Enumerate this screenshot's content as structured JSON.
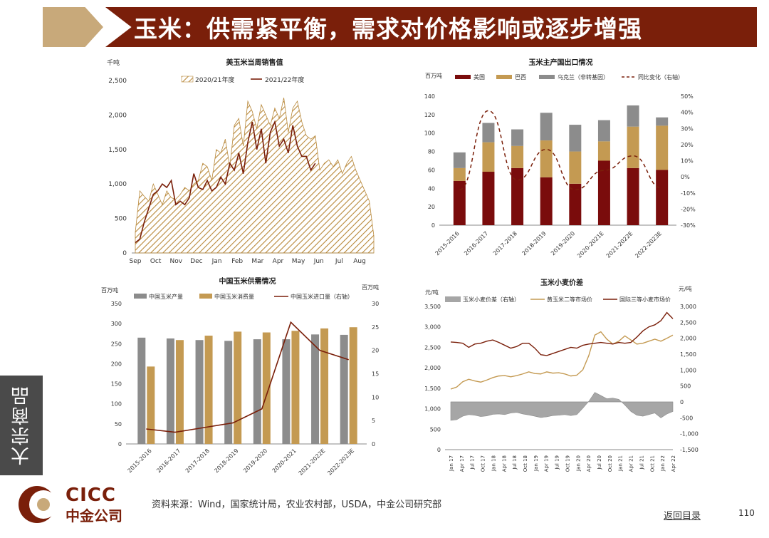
{
  "header": {
    "title": "玉米：供需紧平衡，需求对价格影响或逐步增强"
  },
  "side_tab": {
    "label": "大宗商品"
  },
  "footer": {
    "source": "资料来源：Wind，国家统计局，农业农村部，USDA，中金公司研究部",
    "back_link": "返回目录",
    "page_number": "110",
    "logo_en": "CICC",
    "logo_zh": "中金公司"
  },
  "colors": {
    "brand": "#7a1f0a",
    "tan": "#c8a97a",
    "gray": "#8c8c8c",
    "gold": "#c49a52"
  },
  "chart_data": [
    {
      "type": "area",
      "title": "美玉米当周销售值",
      "ylabel": "千吨",
      "ylim": [
        0,
        2500
      ],
      "yticks": [
        "0",
        "500",
        "1,000",
        "1,500",
        "2,000",
        "2,500"
      ],
      "months": [
        "Sep",
        "Oct",
        "Nov",
        "Dec",
        "Jan",
        "Feb",
        "Mar",
        "Apr",
        "May",
        "Jun",
        "Jul",
        "Aug"
      ],
      "legend_location": "top",
      "series": [
        {
          "name": "2020/21年度",
          "kind": "hatched-area",
          "values": [
            300,
            900,
            820,
            750,
            1000,
            850,
            700,
            900,
            800,
            780,
            850,
            950,
            900,
            1000,
            1050,
            1300,
            1250,
            1050,
            1500,
            1450,
            1650,
            1250,
            1850,
            1950,
            1550,
            2200,
            2050,
            1800,
            2150,
            2000,
            1850,
            2100,
            1950,
            2250,
            1750,
            2100,
            2200,
            1900,
            1700,
            1650,
            1700,
            1200,
            1300,
            1350,
            1250,
            1350,
            1150,
            1300,
            1400,
            1200,
            1050,
            900,
            750,
            250
          ]
        },
        {
          "name": "2021/22年度",
          "kind": "line",
          "values": [
            150,
            200,
            450,
            650,
            850,
            900,
            1000,
            950,
            1050,
            700,
            750,
            700,
            800,
            1150,
            950,
            920,
            1050,
            900,
            950,
            1100,
            1000,
            1300,
            1200,
            1450,
            1150,
            1600,
            1900,
            1500,
            1800,
            1300,
            1750,
            1900,
            1550,
            1650,
            1450,
            1850,
            1550,
            1400,
            1400,
            1200,
            1300
          ]
        }
      ]
    },
    {
      "type": "bar",
      "title": "玉米主产国出口情况",
      "ylabel": "百万吨",
      "ylim": [
        0,
        140
      ],
      "y2lim": [
        -30,
        50
      ],
      "y2ticks": [
        "50%",
        "40%",
        "30%",
        "20%",
        "10%",
        "0%",
        "-10%",
        "-20%",
        "-30%"
      ],
      "categories": [
        "2015-2016",
        "2016-2017",
        "2017-2018",
        "2018-2019",
        "2019-2020",
        "2020-2021E",
        "2021-2022E",
        "2022-2023E"
      ],
      "legend_location": "top",
      "series": [
        {
          "name": "美国",
          "values": [
            48,
            58,
            62,
            52,
            45,
            70,
            62,
            60
          ]
        },
        {
          "name": "巴西",
          "values": [
            14,
            32,
            24,
            40,
            35,
            21,
            45,
            48
          ]
        },
        {
          "name": "乌克兰（非转基因）",
          "values": [
            17,
            21,
            18,
            30,
            29,
            23,
            23,
            9
          ]
        },
        {
          "name": "同比变化（右轴）",
          "axis": "right",
          "kind": "dashed-line",
          "values": [
            -8,
            41,
            -2,
            17,
            -8,
            4,
            13,
            -7
          ]
        }
      ]
    },
    {
      "type": "bar",
      "title": "中国玉米供需情况",
      "ylabel": "百万吨",
      "y2label": "百万吨",
      "ylim": [
        0,
        350
      ],
      "y2lim": [
        0,
        30
      ],
      "categories": [
        "2015-2016",
        "2016-2017",
        "2017-2018",
        "2018-2019",
        "2019-2020",
        "2020-2021",
        "2021-2022E",
        "2022-2023E"
      ],
      "legend_location": "top",
      "series": [
        {
          "name": "中国玉米产量",
          "values": [
            265,
            263,
            259,
            257,
            261,
            261,
            273,
            272
          ]
        },
        {
          "name": "中国玉米消费量",
          "values": [
            193,
            259,
            270,
            280,
            278,
            282,
            288,
            291
          ]
        },
        {
          "name": "中国玉米进口量（右轴）",
          "axis": "right",
          "kind": "line",
          "values": [
            3.2,
            2.5,
            3.5,
            4.5,
            7.5,
            26,
            20,
            18
          ]
        }
      ]
    },
    {
      "type": "line",
      "title": "玉米小麦价差",
      "ylabel": "元/吨",
      "y2label": "元/吨",
      "ylim": [
        0,
        3500
      ],
      "y2lim": [
        -1500,
        3000
      ],
      "yticks": [
        "0",
        "500",
        "1,000",
        "1,500",
        "2,000",
        "2,500",
        "3,000",
        "3,500"
      ],
      "y2ticks": [
        "-1,500",
        "-1,000",
        "-500",
        "0",
        "500",
        "1,000",
        "1,500",
        "2,000",
        "2,500",
        "3,000"
      ],
      "xticks": [
        "Jan 17",
        "Apr 17",
        "Jul 17",
        "Oct 17",
        "Jan 18",
        "Apr 18",
        "Jul 18",
        "Oct 18",
        "Jan 19",
        "Apr 19",
        "Jul 19",
        "Oct 19",
        "Jan 20",
        "Apr 20",
        "Jul 20",
        "Oct 20",
        "Jan 21",
        "Apr 21",
        "Jul 21",
        "Oct 21",
        "Jan 22",
        "Apr 22"
      ],
      "legend_location": "top",
      "series": [
        {
          "name": "玉米小麦价差（右轴）",
          "axis": "right",
          "kind": "area",
          "values": [
            -580,
            -560,
            -450,
            -400,
            -420,
            -460,
            -440,
            -390,
            -380,
            -400,
            -350,
            -330,
            -380,
            -410,
            -450,
            -490,
            -470,
            -430,
            -420,
            -400,
            -430,
            -400,
            -200,
            20,
            300,
            200,
            100,
            120,
            80,
            -100,
            -300,
            -420,
            -450,
            -400,
            -350,
            -500,
            -380,
            -300
          ]
        },
        {
          "name": "黄玉米二等市场价",
          "kind": "line",
          "values": [
            1480,
            1530,
            1660,
            1720,
            1680,
            1650,
            1700,
            1760,
            1800,
            1810,
            1780,
            1810,
            1850,
            1900,
            1860,
            1850,
            1900,
            1870,
            1880,
            1850,
            1800,
            1820,
            1950,
            2300,
            2800,
            2880,
            2700,
            2580,
            2650,
            2780,
            2680,
            2580,
            2600,
            2650,
            2700,
            2650,
            2720,
            2800
          ]
        },
        {
          "name": "国际三等小麦市场价",
          "kind": "line",
          "values": [
            2630,
            2620,
            2600,
            2500,
            2580,
            2600,
            2650,
            2680,
            2620,
            2550,
            2480,
            2520,
            2600,
            2600,
            2480,
            2320,
            2300,
            2350,
            2400,
            2450,
            2500,
            2480,
            2550,
            2580,
            2600,
            2620,
            2600,
            2580,
            2620,
            2600,
            2620,
            2750,
            2900,
            3000,
            3050,
            3150,
            3350,
            3200
          ]
        }
      ]
    }
  ]
}
